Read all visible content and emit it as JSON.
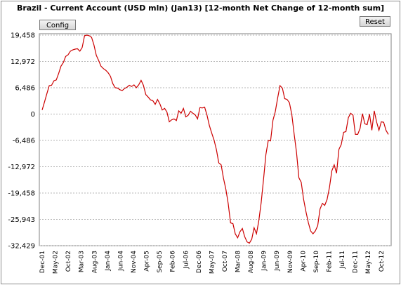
{
  "chart_data": {
    "type": "line",
    "title": "Brazil - Current Account  (USD mln) (Jan13) [12-month Net Change of 12-month sum]",
    "xlabel": "",
    "ylabel": "",
    "ylim": [
      -32429,
      19458
    ],
    "y_ticks": [
      "19,458",
      "12,972",
      "6,486",
      "0",
      "-6,486",
      "-12,972",
      "-19,458",
      "-25,943",
      "-32,429"
    ],
    "y_tick_values": [
      19458,
      12972,
      6486,
      0,
      -6486,
      -12972,
      -19458,
      -25943,
      -32429
    ],
    "x_ticks": [
      "Dec-01",
      "May-02",
      "Oct-02",
      "Mar-03",
      "Aug-03",
      "Jan-04",
      "Jun-04",
      "Nov-04",
      "Apr-05",
      "Sep-05",
      "Feb-06",
      "Jul-06",
      "Dec-06",
      "May-07",
      "Oct-07",
      "Mar-08",
      "Aug-08",
      "Jan-09",
      "Jun-09",
      "Nov-09",
      "Apr-10",
      "Sep-10",
      "Feb-11",
      "Jul-11",
      "Dec-11",
      "May-12",
      "Oct-12"
    ],
    "grid": true,
    "series": [
      {
        "color": "#cc0000",
        "values": [
          1000,
          3000,
          5000,
          7000,
          7100,
          8200,
          8400,
          10000,
          11800,
          12700,
          14200,
          14600,
          15500,
          15800,
          16000,
          16100,
          15500,
          16400,
          19300,
          19458,
          19300,
          18900,
          17000,
          14500,
          13200,
          11800,
          11200,
          10800,
          10200,
          9300,
          7500,
          6500,
          6400,
          6000,
          5800,
          6300,
          6600,
          7100,
          6800,
          7200,
          6500,
          7200,
          8300,
          7100,
          4800,
          4200,
          3500,
          3300,
          2400,
          3600,
          2500,
          1000,
          1400,
          500,
          -1900,
          -1400,
          -1200,
          -1600,
          800,
          200,
          1400,
          -700,
          -300,
          700,
          200,
          -200,
          -1200,
          1600,
          1500,
          1700,
          -300,
          -2800,
          -4700,
          -6400,
          -8800,
          -12000,
          -12500,
          -15800,
          -18500,
          -22000,
          -26800,
          -27000,
          -29500,
          -30500,
          -29000,
          -28200,
          -30200,
          -31500,
          -31800,
          -30800,
          -28000,
          -29500,
          -26300,
          -21800,
          -16000,
          -10000,
          -6500,
          -6600,
          -1500,
          600,
          4000,
          7000,
          6400,
          3800,
          3600,
          2800,
          -100,
          -5000,
          -9400,
          -15700,
          -16800,
          -21000,
          -24000,
          -26700,
          -28800,
          -29500,
          -28800,
          -27500,
          -23400,
          -22000,
          -22500,
          -21000,
          -18000,
          -14000,
          -12500,
          -14600,
          -8700,
          -7500,
          -4500,
          -4300,
          -900,
          200,
          -300,
          -5000,
          -5000,
          -3500,
          100,
          -2400,
          -2600,
          0,
          -4000,
          800,
          -1900,
          -4000,
          -1900,
          -2000,
          -4000,
          -5000
        ]
      }
    ]
  },
  "buttons": {
    "config_label": "Config",
    "reset_label": "Reset"
  }
}
